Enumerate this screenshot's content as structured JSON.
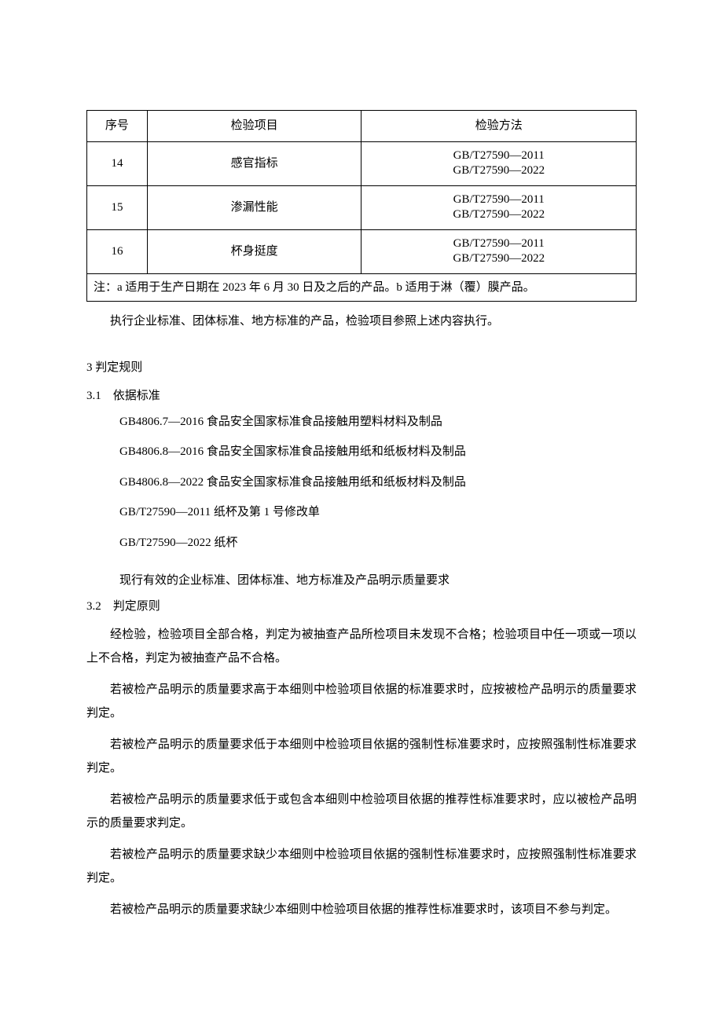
{
  "table": {
    "headers": {
      "seq": "序号",
      "item": "检验项目",
      "method": "检验方法"
    },
    "rows": [
      {
        "seq": "14",
        "item": "感官指标",
        "methods": [
          "GB/T27590—2011",
          "GB/T27590—2022"
        ]
      },
      {
        "seq": "15",
        "item": "渗漏性能",
        "methods": [
          "GB/T27590—2011",
          "GB/T27590—2022"
        ]
      },
      {
        "seq": "16",
        "item": "杯身挺度",
        "methods": [
          "GB/T27590—2011",
          "GB/T27590—2022"
        ]
      }
    ],
    "note": "注：a 适用于生产日期在 2023 年 6 月 30 日及之后的产品。b 适用于淋（覆）膜产品。"
  },
  "after_table": "执行企业标准、团体标准、地方标准的产品，检验项目参照上述内容执行。",
  "section3": {
    "heading": "3 判定规则",
    "sub_3_1": {
      "heading": "3.1 依据标准",
      "standards": [
        "GB4806.7—2016 食品安全国家标准食品接触用塑料材料及制品",
        "GB4806.8—2016 食品安全国家标准食品接触用纸和纸板材料及制品",
        "GB4806.8—2022 食品安全国家标准食品接触用纸和纸板材料及制品",
        "GB/T27590—2011 纸杯及第 1 号修改单",
        "GB/T27590—2022 纸杯"
      ],
      "tail": "现行有效的企业标准、团体标准、地方标准及产品明示质量要求"
    },
    "sub_3_2": {
      "heading": "3.2 判定原则",
      "paras": [
        "经检验，检验项目全部合格，判定为被抽查产品所检项目未发现不合格；检验项目中任一项或一项以上不合格，判定为被抽查产品不合格。",
        "若被检产品明示的质量要求高于本细则中检验项目依据的标准要求时，应按被检产品明示的质量要求判定。",
        "若被检产品明示的质量要求低于本细则中检验项目依据的强制性标准要求时，应按照强制性标准要求判定。",
        "若被检产品明示的质量要求低于或包含本细则中检验项目依据的推荐性标准要求时，应以被检产品明示的质量要求判定。",
        "若被检产品明示的质量要求缺少本细则中检验项目依据的强制性标准要求时，应按照强制性标准要求判定。",
        "若被检产品明示的质量要求缺少本细则中检验项目依据的推荐性标准要求时，该项目不参与判定。"
      ]
    }
  }
}
